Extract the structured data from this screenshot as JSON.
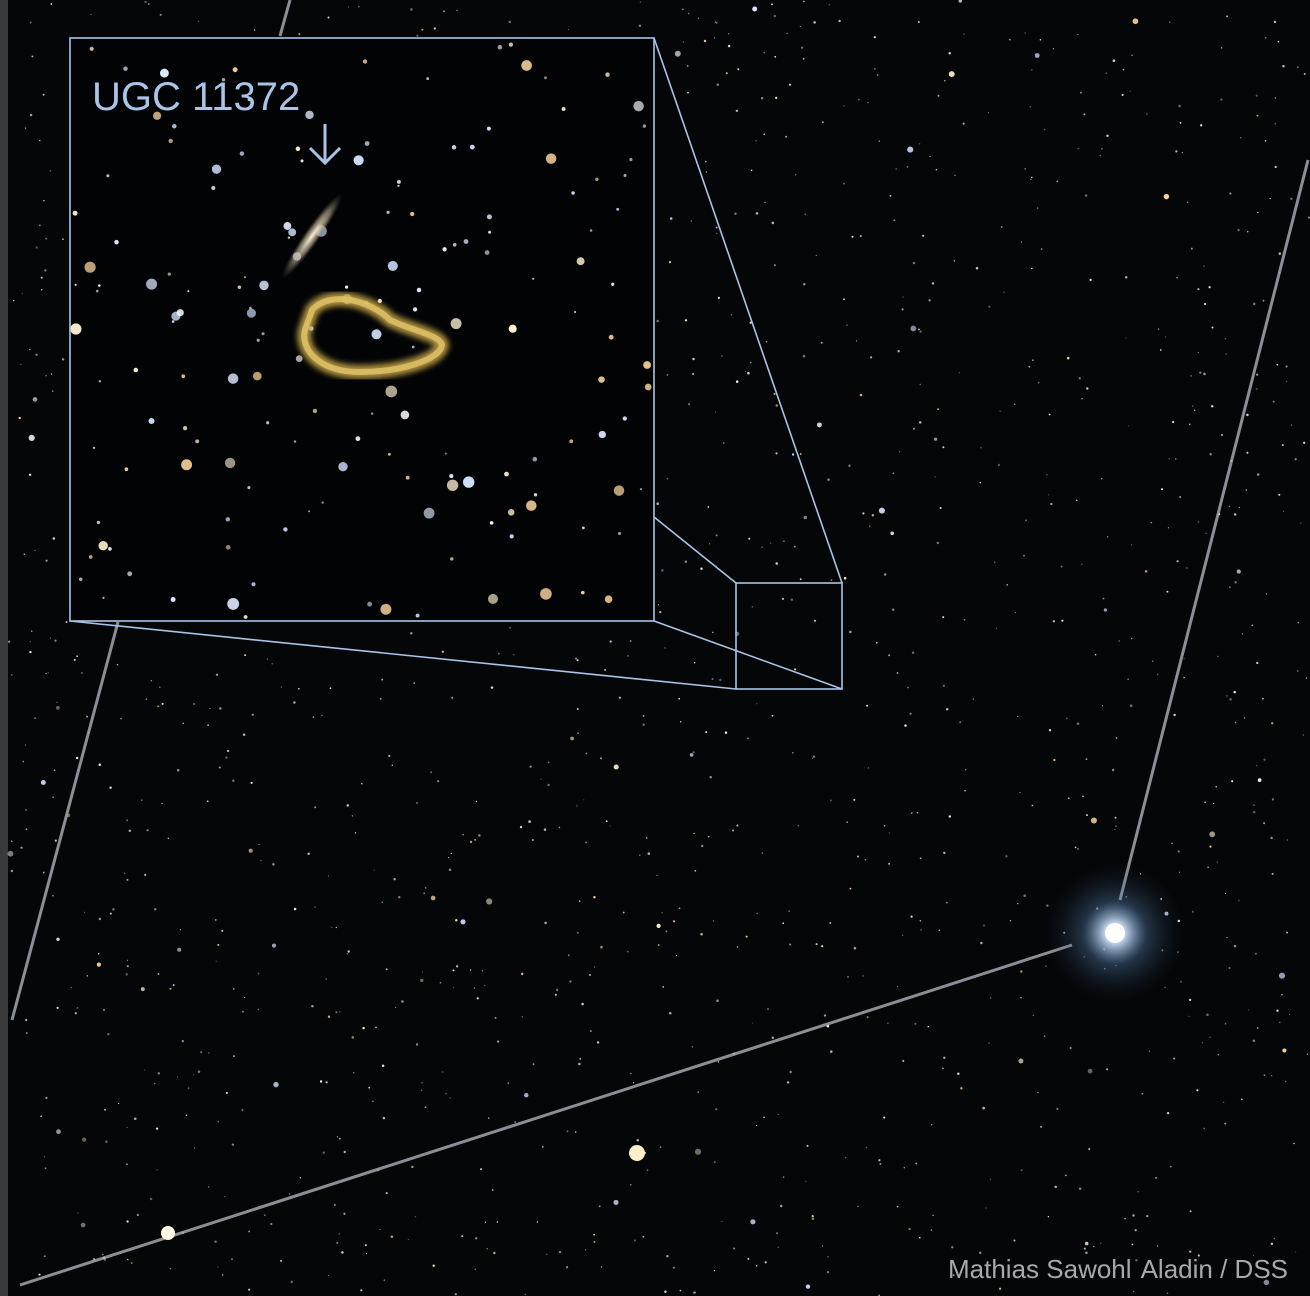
{
  "inset": {
    "label": "UGC 11372"
  },
  "credits": [
    "Mathias Sawohl",
    "Aladin / DSS"
  ]
}
